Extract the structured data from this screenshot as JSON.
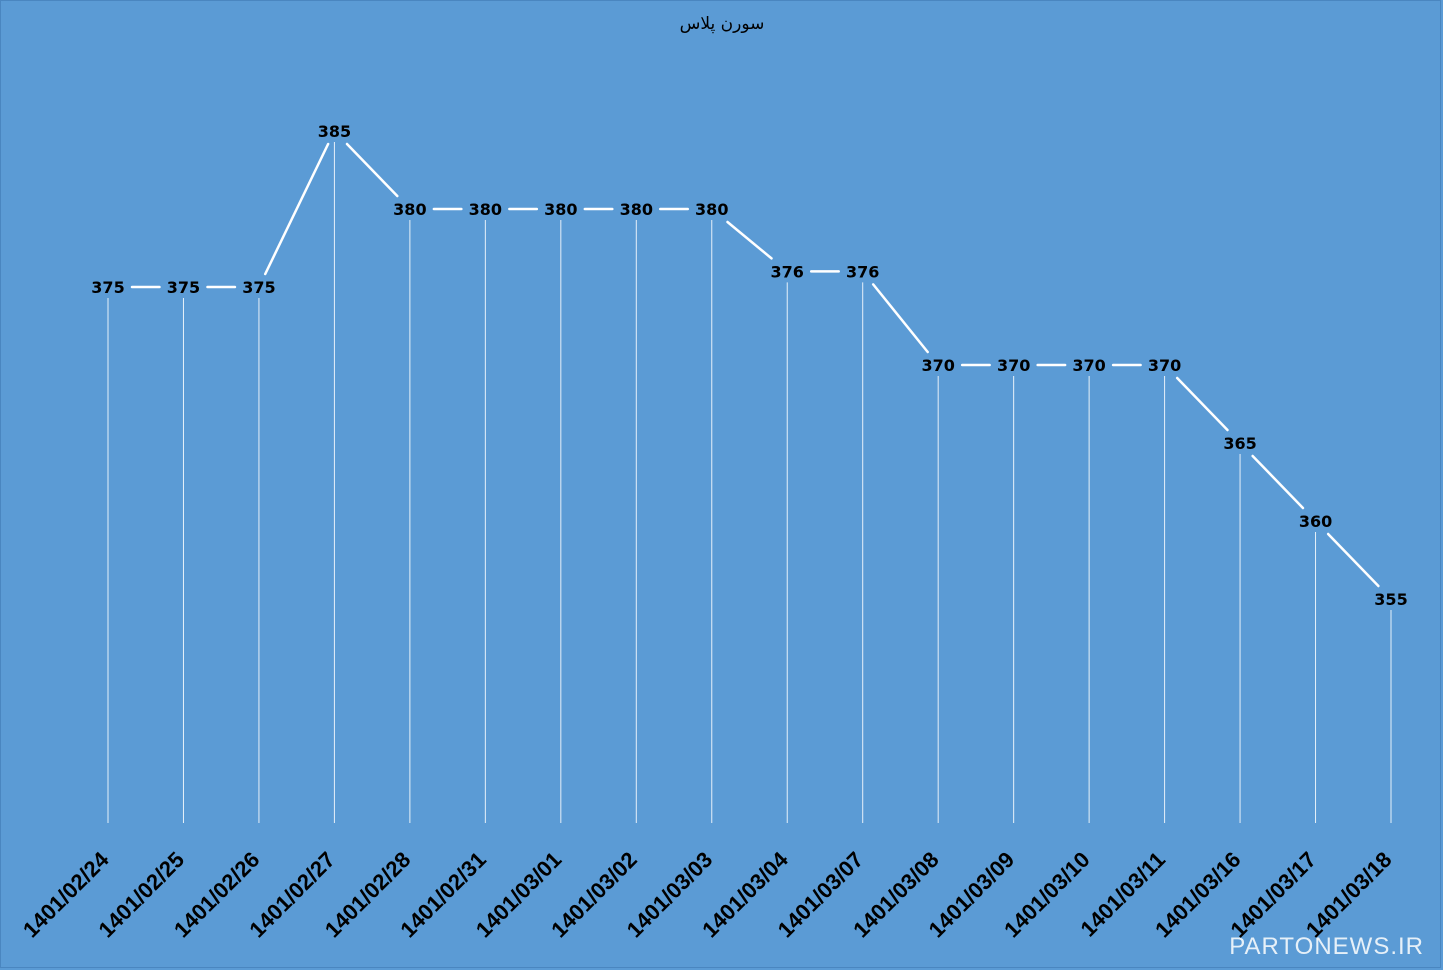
{
  "chart_data": {
    "type": "line",
    "title": "سورن پلاس",
    "categories": [
      "1401/02/24",
      "1401/02/25",
      "1401/02/26",
      "1401/02/27",
      "1401/02/28",
      "1401/02/31",
      "1401/03/01",
      "1401/03/02",
      "1401/03/03",
      "1401/03/04",
      "1401/03/07",
      "1401/03/08",
      "1401/03/09",
      "1401/03/10",
      "1401/03/11",
      "1401/03/16",
      "1401/03/17",
      "1401/03/18"
    ],
    "values": [
      375,
      375,
      375,
      385,
      380,
      380,
      380,
      380,
      380,
      376,
      376,
      370,
      370,
      370,
      370,
      365,
      360,
      355
    ],
    "xlabel": "",
    "ylabel": "",
    "drop_lines": true,
    "data_labels": true,
    "grid": false,
    "legend": "none",
    "colors": {
      "background": "#5b9bd5",
      "line": "#ffffff",
      "drop_line": "#ffffff",
      "text": "#000000"
    }
  },
  "watermark": "PARTONEWS.IR"
}
